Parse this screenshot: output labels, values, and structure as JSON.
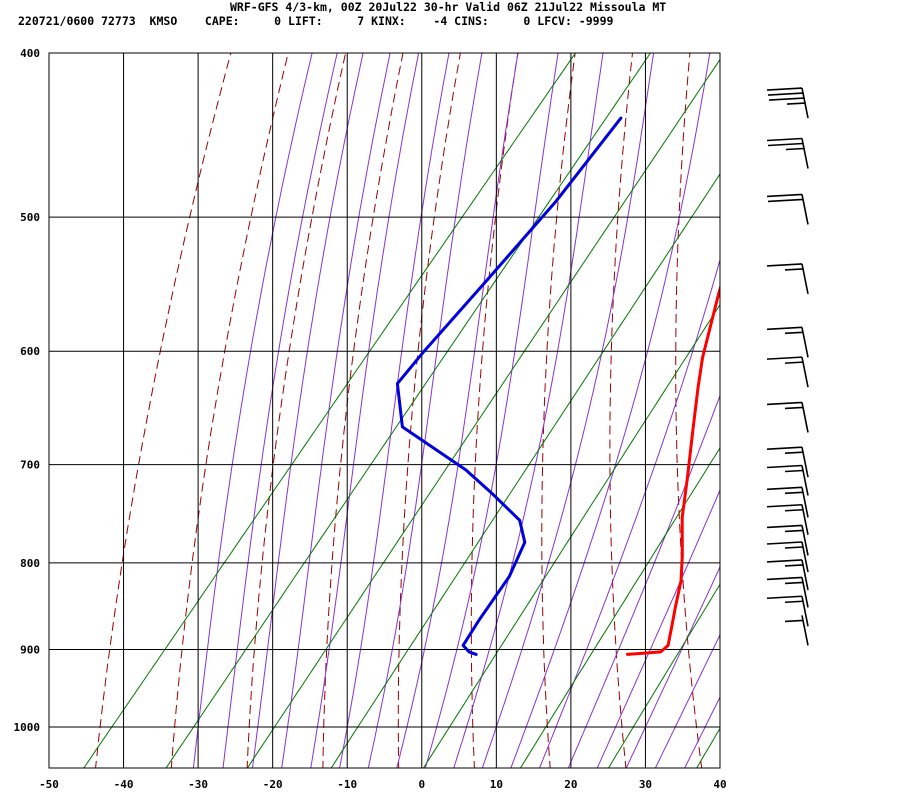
{
  "header": {
    "line1": "WRF-GFS 4/3-km, 00Z 20Jul22 30-hr Valid 06Z 21Jul22 Missoula MT",
    "line2": "220721/0600 72773  KMSO    CAPE:     0 LIFT:     7 KINX:    -4 CINS:     0 LFCV: -9999"
  },
  "colors": {
    "temperature": "#ff0000",
    "dewpoint": "#0000dd",
    "dry_adiabat": "#990000",
    "moist_adiabat": "#8833cc",
    "mixing_ratio": "#007700",
    "grid": "#000000"
  },
  "chart_data": {
    "type": "line",
    "title": "",
    "xlabel": "",
    "ylabel": "",
    "xlim": [
      -50,
      40
    ],
    "ylim": [
      1050,
      400
    ],
    "y_scale": "log",
    "x_ticks": [
      "-50",
      "-40",
      "-30",
      "-20",
      "-10",
      "0",
      "10",
      "20",
      "30",
      "40"
    ],
    "y_ticks": [
      "400",
      "500",
      "600",
      "700",
      "800",
      "900",
      "1000"
    ],
    "grid": true,
    "series": [
      {
        "points": [
          [
            -17,
            437
          ],
          [
            -14,
            468
          ],
          [
            -10,
            505
          ],
          [
            -5.5,
            555
          ],
          [
            -1,
            605
          ],
          [
            1.5,
            630
          ],
          [
            5.5,
            670
          ],
          [
            9.5,
            712
          ],
          [
            13,
            752
          ],
          [
            17,
            792
          ],
          [
            19.5,
            820
          ],
          [
            21.5,
            850
          ],
          [
            23,
            872
          ],
          [
            24.5,
            895
          ],
          [
            24.2,
            903
          ],
          [
            20,
            906
          ]
        ]
      },
      {
        "points": [
          [
            -37,
            437
          ],
          [
            -37,
            490
          ],
          [
            -38,
            545
          ],
          [
            -39,
            600
          ],
          [
            -39.2,
            627
          ],
          [
            -34,
            665
          ],
          [
            -21,
            705
          ],
          [
            -15,
            728
          ],
          [
            -8.5,
            755
          ],
          [
            -5.5,
            778
          ],
          [
            -4,
            815
          ],
          [
            -3.5,
            865
          ],
          [
            -3,
            895
          ],
          [
            -1.5,
            903
          ],
          [
            -0.3,
            906
          ]
        ]
      }
    ],
    "wind_barbs": [
      {
        "pressure": 437,
        "flags": 0,
        "full_barbs": 3,
        "half_barbs": 1
      },
      {
        "pressure": 468,
        "flags": 0,
        "full_barbs": 2,
        "half_barbs": 1
      },
      {
        "pressure": 505,
        "flags": 0,
        "full_barbs": 2,
        "half_barbs": 0
      },
      {
        "pressure": 555,
        "flags": 0,
        "full_barbs": 1,
        "half_barbs": 1
      },
      {
        "pressure": 605,
        "flags": 0,
        "full_barbs": 1,
        "half_barbs": 1
      },
      {
        "pressure": 630,
        "flags": 0,
        "full_barbs": 1,
        "half_barbs": 1
      },
      {
        "pressure": 670,
        "flags": 0,
        "full_barbs": 1,
        "half_barbs": 1
      },
      {
        "pressure": 712,
        "flags": 0,
        "full_barbs": 1,
        "half_barbs": 1
      },
      {
        "pressure": 730,
        "flags": 0,
        "full_barbs": 1,
        "half_barbs": 1
      },
      {
        "pressure": 752,
        "flags": 0,
        "full_barbs": 1,
        "half_barbs": 1
      },
      {
        "pressure": 770,
        "flags": 0,
        "full_barbs": 1,
        "half_barbs": 1
      },
      {
        "pressure": 792,
        "flags": 0,
        "full_barbs": 1,
        "half_barbs": 1
      },
      {
        "pressure": 810,
        "flags": 0,
        "full_barbs": 1,
        "half_barbs": 1
      },
      {
        "pressure": 830,
        "flags": 0,
        "full_barbs": 1,
        "half_barbs": 1
      },
      {
        "pressure": 850,
        "flags": 0,
        "full_barbs": 1,
        "half_barbs": 1
      },
      {
        "pressure": 872,
        "flags": 0,
        "full_barbs": 1,
        "half_barbs": 1
      },
      {
        "pressure": 895,
        "flags": 0,
        "full_barbs": 0,
        "half_barbs": 1
      }
    ]
  }
}
